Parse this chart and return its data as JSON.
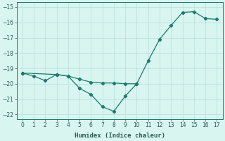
{
  "xlabel": "Humidex (Indice chaleur)",
  "x": [
    0,
    1,
    2,
    3,
    4,
    5,
    6,
    7,
    8,
    9,
    10,
    11,
    12,
    13,
    14,
    15,
    16,
    17
  ],
  "line1": [
    -19.3,
    -19.5,
    -19.8,
    -19.4,
    -19.5,
    -19.7,
    -19.9,
    -19.95,
    -19.95,
    -20.0,
    -20.0,
    -18.5,
    -17.1,
    -16.2,
    -15.35,
    -15.3,
    -15.75,
    -15.8
  ],
  "line2_seg1_x": [
    0,
    3,
    4,
    5,
    6,
    7,
    8,
    9,
    10
  ],
  "line2_seg1_y": [
    -19.3,
    -19.4,
    -19.5,
    -20.3,
    -20.7,
    -21.5,
    -21.8,
    -20.8,
    -20.0
  ],
  "ylim": [
    -22.3,
    -14.7
  ],
  "yticks": [
    -22,
    -21,
    -20,
    -19,
    -18,
    -17,
    -16,
    -15
  ],
  "xlim": [
    -0.5,
    17.5
  ],
  "xticks": [
    0,
    1,
    2,
    3,
    4,
    5,
    6,
    7,
    8,
    9,
    10,
    11,
    12,
    13,
    14,
    15,
    16,
    17
  ],
  "line_color": "#1a7a6e",
  "bg_color": "#d8f5f0",
  "grid_color": "#b8deda",
  "font_color": "#2a5a55",
  "tick_fontsize": 5.5,
  "label_fontsize": 6.5
}
